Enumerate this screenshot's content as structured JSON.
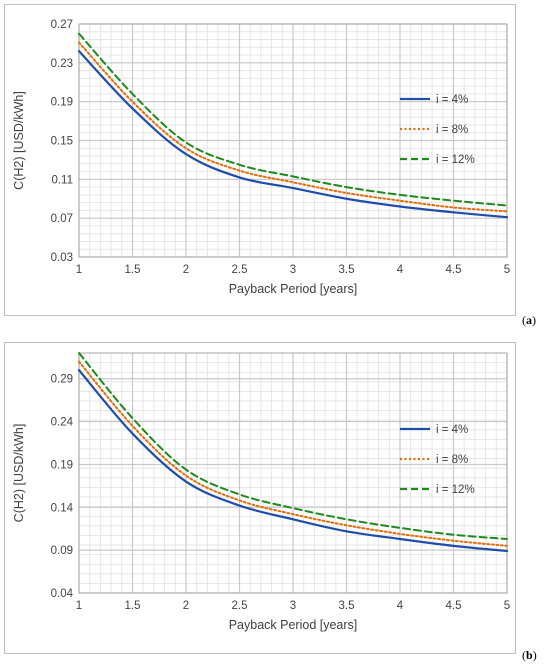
{
  "colors": {
    "i4": "#1f4eaa",
    "i8": "#e46c0a",
    "i12": "#1e8a1e",
    "major_grid": "#c8c8c8",
    "minor_grid": "#e6e6e6",
    "frame": "#bfbfbf"
  },
  "chart_data": [
    {
      "type": "line",
      "panel_label": "a",
      "xlabel": "Payback Period [years]",
      "ylabel": "C(H2) [USD/kWh]",
      "xlim": [
        1,
        5
      ],
      "ylim": [
        0.03,
        0.27
      ],
      "xticks": [
        "1",
        "1.5",
        "2",
        "2.5",
        "3",
        "3.5",
        "4",
        "4.5",
        "5"
      ],
      "yticks": [
        "0.03",
        "0.07",
        "0.11",
        "0.15",
        "0.19",
        "0.23",
        "0.27"
      ],
      "grid": true,
      "legend_position": "right",
      "x": [
        1.0,
        1.5,
        2.0,
        2.5,
        3.0,
        3.5,
        4.0,
        4.5,
        5.0
      ],
      "series": [
        {
          "name": "i = 4%",
          "style": "solid",
          "color": "#1f4eaa",
          "values": [
            0.242,
            0.183,
            0.136,
            0.112,
            0.101,
            0.09,
            0.082,
            0.076,
            0.071
          ]
        },
        {
          "name": "i = 8%",
          "style": "dotted",
          "color": "#e46c0a",
          "values": [
            0.251,
            0.19,
            0.142,
            0.119,
            0.107,
            0.096,
            0.088,
            0.081,
            0.077
          ]
        },
        {
          "name": "i = 12%",
          "style": "dashed",
          "color": "#1e8a1e",
          "values": [
            0.26,
            0.198,
            0.148,
            0.125,
            0.113,
            0.102,
            0.094,
            0.088,
            0.083
          ]
        }
      ]
    },
    {
      "type": "line",
      "panel_label": "b",
      "xlabel": "Payback Period [years]",
      "ylabel": "C(H2) [USD/kWh]",
      "xlim": [
        1,
        5
      ],
      "ylim": [
        0.04,
        0.32
      ],
      "xticks": [
        "1",
        "1.5",
        "2",
        "2.5",
        "3",
        "3.5",
        "4",
        "4.5",
        "5"
      ],
      "yticks": [
        "0.04",
        "0.09",
        "0.14",
        "0.19",
        "0.24",
        "0.29"
      ],
      "grid": true,
      "legend_position": "right",
      "x": [
        1.0,
        1.5,
        2.0,
        2.5,
        3.0,
        3.5,
        4.0,
        4.5,
        5.0
      ],
      "series": [
        {
          "name": "i = 4%",
          "style": "solid",
          "color": "#1f4eaa",
          "values": [
            0.3,
            0.226,
            0.17,
            0.142,
            0.126,
            0.112,
            0.103,
            0.095,
            0.089
          ]
        },
        {
          "name": "i = 8%",
          "style": "dotted",
          "color": "#e46c0a",
          "values": [
            0.31,
            0.235,
            0.177,
            0.148,
            0.132,
            0.119,
            0.109,
            0.101,
            0.095
          ]
        },
        {
          "name": "i = 12%",
          "style": "dashed",
          "color": "#1e8a1e",
          "values": [
            0.32,
            0.244,
            0.184,
            0.155,
            0.139,
            0.126,
            0.116,
            0.108,
            0.103
          ]
        }
      ]
    }
  ]
}
